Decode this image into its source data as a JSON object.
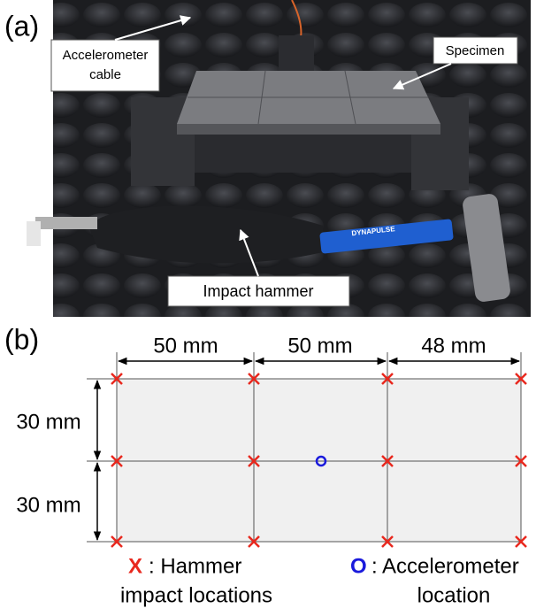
{
  "panel_a": {
    "label": "(a)",
    "annotations": {
      "accelerometer_cable": [
        "Accelerometer",
        "cable"
      ],
      "specimen": "Specimen",
      "impact_hammer": "Impact hammer",
      "hammer_brand": "DYNAPULSE"
    }
  },
  "panel_b": {
    "label": "(b)",
    "horizontal_dimensions": [
      "50 mm",
      "50 mm",
      "48 mm"
    ],
    "vertical_dimensions": [
      "30 mm",
      "30 mm"
    ],
    "legend": {
      "hammer": {
        "symbol": "X",
        "text": [
          ": Hammer",
          "impact locations"
        ]
      },
      "accelerometer": {
        "symbol": "O",
        "text": [
          ": Accelerometer",
          "location"
        ]
      }
    }
  }
}
